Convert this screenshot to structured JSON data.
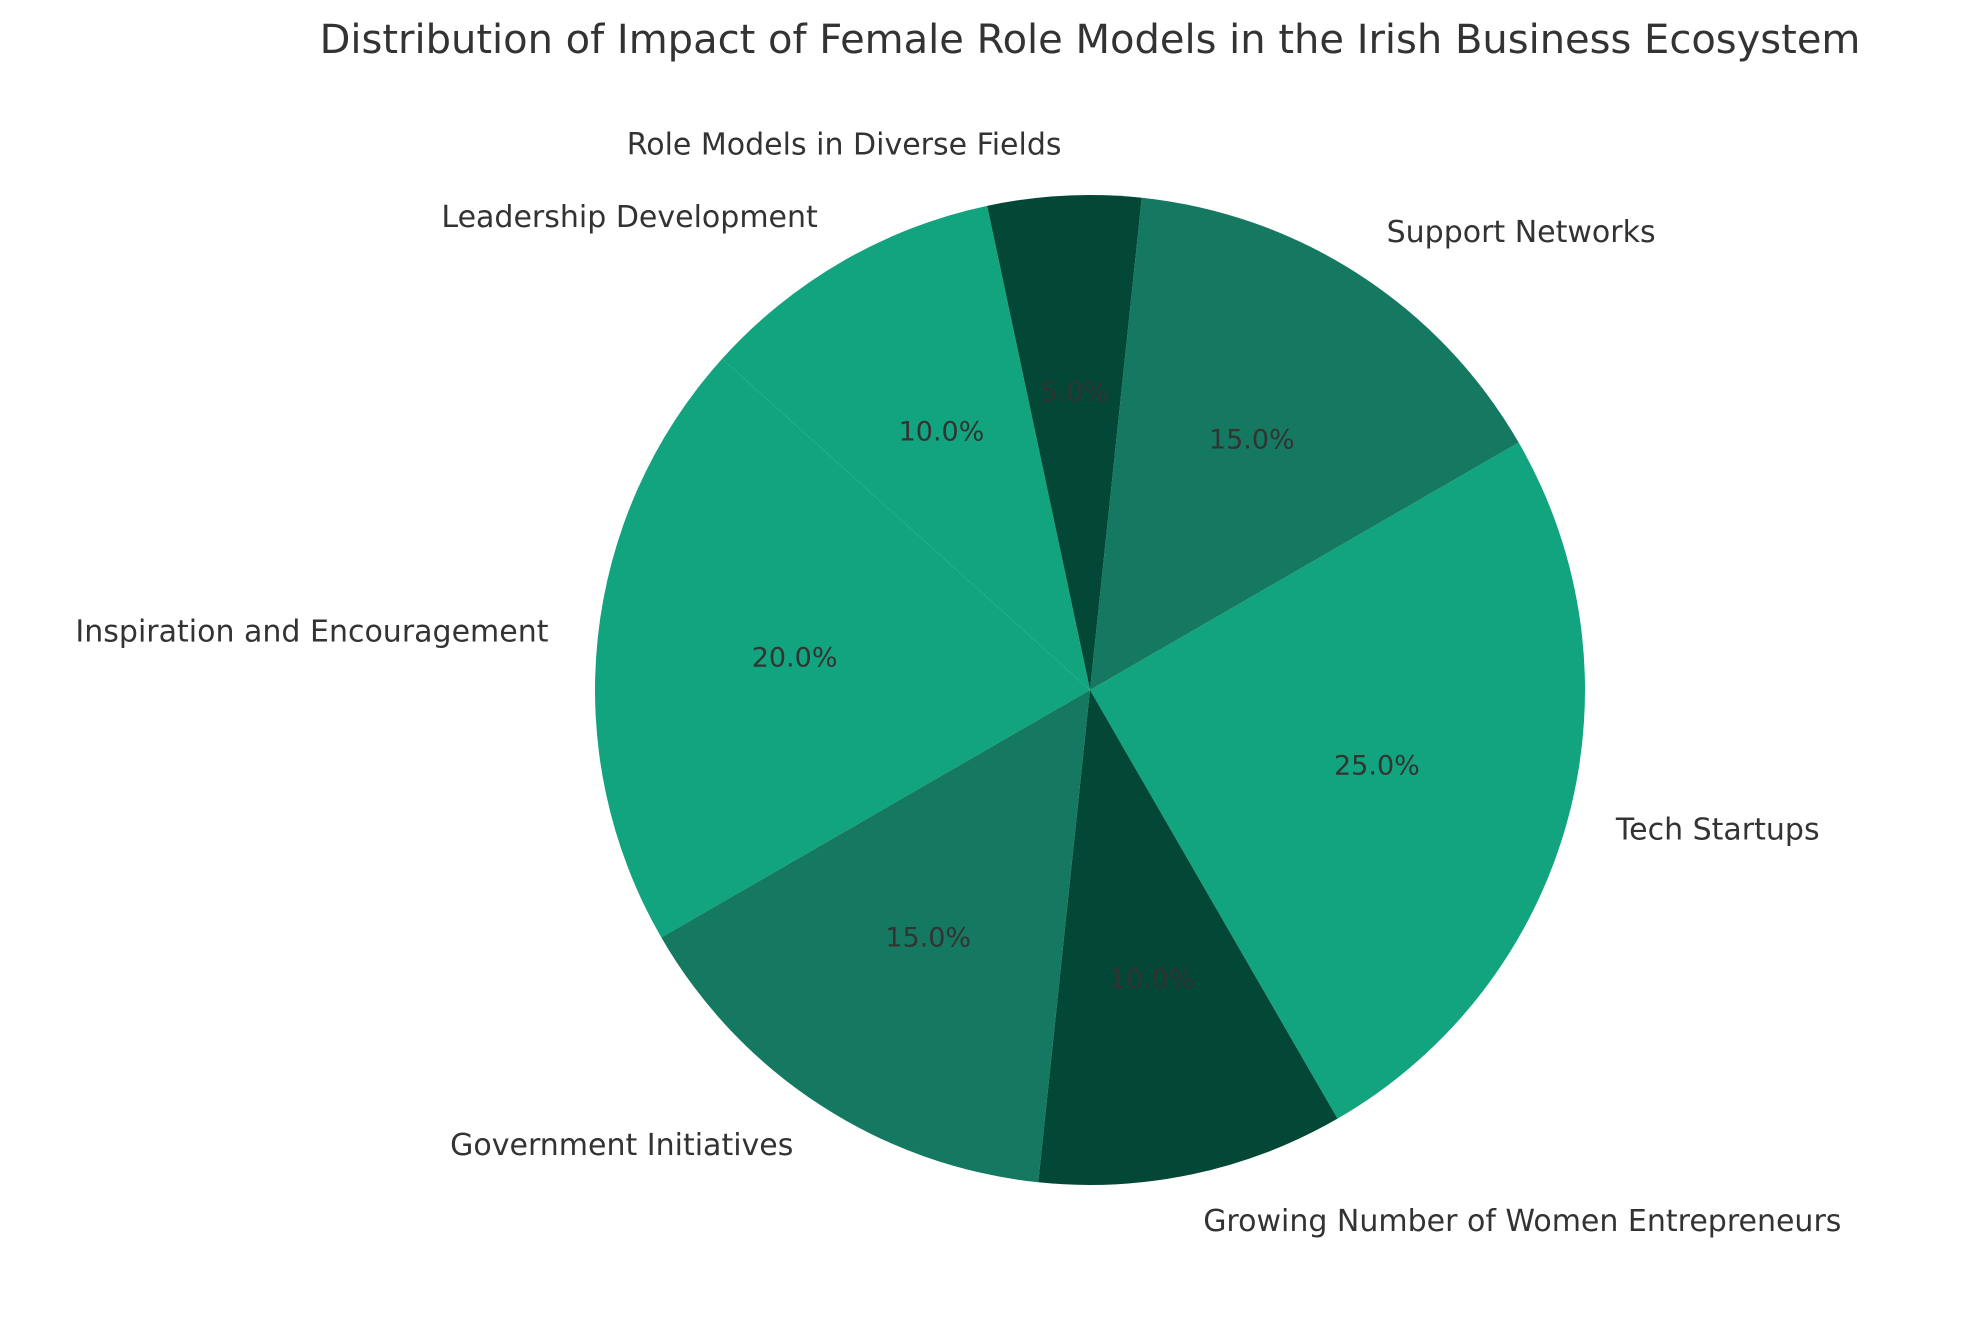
{
  "chart_data": {
    "type": "pie",
    "title": "Distribution of Impact of Female Role Models in the Irish Business Ecosystem",
    "categories": [
      "Tech Startups",
      "Support Networks",
      "Role Models in Diverse Fields",
      "Leadership Development",
      "Inspiration and Encouragement",
      "Government Initiatives",
      "Growing Number of Women Entrepreneurs"
    ],
    "values": [
      25,
      15,
      5,
      10,
      20,
      15,
      10
    ],
    "percent_labels": [
      "25.0%",
      "15.0%",
      "5.0%",
      "10.0%",
      "20.0%",
      "15.0%",
      "10.0%"
    ],
    "colors": [
      "#11a47e",
      "#157962",
      "#034836",
      "#11a47e",
      "#11a47e",
      "#157962",
      "#034836"
    ],
    "label_color": "#333333",
    "start_angle_deg": -60,
    "direction": "counterclockwise",
    "legend": "none"
  }
}
